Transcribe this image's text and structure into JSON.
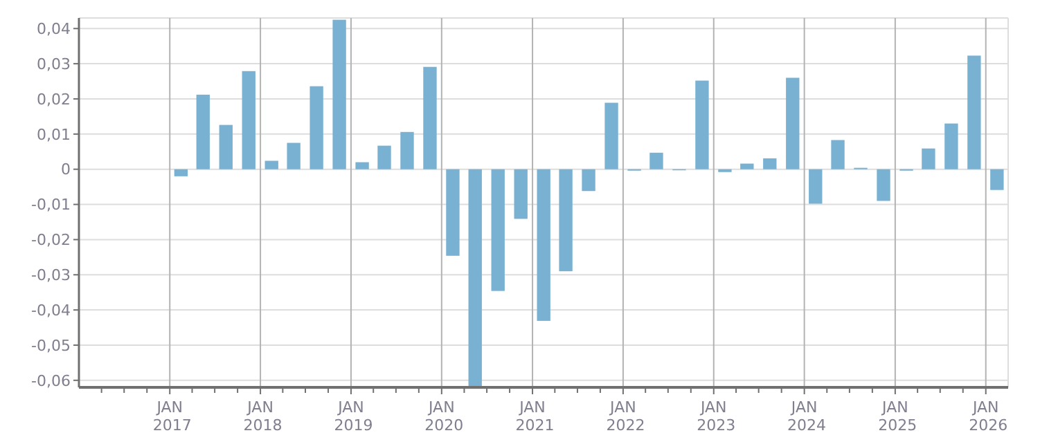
{
  "chart_data": {
    "type": "bar",
    "color": "#79b1d3",
    "grid": true,
    "x": [
      "2017-02-15",
      "2017-05-15",
      "2017-08-15",
      "2017-11-15",
      "2018-02-15",
      "2018-05-15",
      "2018-08-15",
      "2018-11-15",
      "2019-02-15",
      "2019-05-15",
      "2019-08-15",
      "2019-11-15",
      "2020-02-15",
      "2020-05-15",
      "2020-08-15",
      "2020-11-15",
      "2021-02-15",
      "2021-05-15",
      "2021-08-15",
      "2021-11-15",
      "2022-02-15",
      "2022-05-15",
      "2022-08-15",
      "2022-11-15",
      "2023-02-15",
      "2023-05-15",
      "2023-08-15",
      "2023-11-15",
      "2024-02-15",
      "2024-05-15",
      "2024-08-15",
      "2024-11-15",
      "2025-02-15",
      "2025-05-15",
      "2025-08-15",
      "2025-11-15",
      "2026-02-15"
    ],
    "values": [
      -0.002,
      0.0212,
      0.0126,
      0.0279,
      0.0024,
      0.0075,
      0.0236,
      0.0425,
      0.002,
      0.0067,
      0.0106,
      0.0291,
      -0.0246,
      -0.062,
      -0.0346,
      -0.0141,
      -0.0431,
      -0.029,
      -0.0062,
      0.0189,
      -0.0004,
      0.0047,
      -0.0003,
      0.0252,
      -0.0008,
      0.0016,
      0.0031,
      0.026,
      -0.0098,
      0.0083,
      0.0004,
      -0.009,
      -0.0004,
      0.0059,
      0.013,
      0.0323,
      -0.0059
    ],
    "xlim": [
      "2016-01-01",
      "2026-04-01"
    ],
    "xticks": [
      {
        "value": "2016-04-01",
        "label": null
      },
      {
        "value": "2016-07-01",
        "label": null
      },
      {
        "value": "2016-10-01",
        "label": null
      },
      {
        "value": "2017-01-01",
        "label": "JAN 2017"
      },
      {
        "value": "2017-04-01",
        "label": null
      },
      {
        "value": "2017-07-01",
        "label": null
      },
      {
        "value": "2017-10-01",
        "label": null
      },
      {
        "value": "2018-01-01",
        "label": "JAN 2018"
      },
      {
        "value": "2018-04-01",
        "label": null
      },
      {
        "value": "2018-07-01",
        "label": null
      },
      {
        "value": "2018-10-01",
        "label": null
      },
      {
        "value": "2019-01-01",
        "label": "JAN 2019"
      },
      {
        "value": "2019-04-01",
        "label": null
      },
      {
        "value": "2019-07-01",
        "label": null
      },
      {
        "value": "2019-10-01",
        "label": null
      },
      {
        "value": "2020-01-01",
        "label": "JAN 2020"
      },
      {
        "value": "2020-04-01",
        "label": null
      },
      {
        "value": "2020-07-01",
        "label": null
      },
      {
        "value": "2020-10-01",
        "label": null
      },
      {
        "value": "2021-01-01",
        "label": "JAN 2021"
      },
      {
        "value": "2021-04-01",
        "label": null
      },
      {
        "value": "2021-07-01",
        "label": null
      },
      {
        "value": "2021-10-01",
        "label": null
      },
      {
        "value": "2022-01-01",
        "label": "JAN 2022"
      },
      {
        "value": "2022-04-01",
        "label": null
      },
      {
        "value": "2022-07-01",
        "label": null
      },
      {
        "value": "2022-10-01",
        "label": null
      },
      {
        "value": "2023-01-01",
        "label": "JAN 2023"
      },
      {
        "value": "2023-04-01",
        "label": null
      },
      {
        "value": "2023-07-01",
        "label": null
      },
      {
        "value": "2023-10-01",
        "label": null
      },
      {
        "value": "2024-01-01",
        "label": "JAN 2024"
      },
      {
        "value": "2024-04-01",
        "label": null
      },
      {
        "value": "2024-07-01",
        "label": null
      },
      {
        "value": "2024-10-01",
        "label": null
      },
      {
        "value": "2025-01-01",
        "label": "JAN 2025"
      },
      {
        "value": "2025-04-01",
        "label": null
      },
      {
        "value": "2025-07-01",
        "label": null
      },
      {
        "value": "2025-10-01",
        "label": null
      },
      {
        "value": "2026-01-01",
        "label": "JAN 2026"
      }
    ],
    "ylim": [
      -0.062,
      0.043
    ],
    "yticks": [
      {
        "value": -0.06,
        "label": "-0,06"
      },
      {
        "value": -0.05,
        "label": "-0,05"
      },
      {
        "value": -0.04,
        "label": "-0,04"
      },
      {
        "value": -0.03,
        "label": "-0,03"
      },
      {
        "value": -0.02,
        "label": "-0,02"
      },
      {
        "value": -0.01,
        "label": "-0,01"
      },
      0,
      {
        "value": 0.01,
        "label": "0,01"
      },
      {
        "value": 0.02,
        "label": "0,02"
      },
      {
        "value": 0.03,
        "label": "0,03"
      },
      {
        "value": 0.04,
        "label": "0,04"
      }
    ]
  }
}
